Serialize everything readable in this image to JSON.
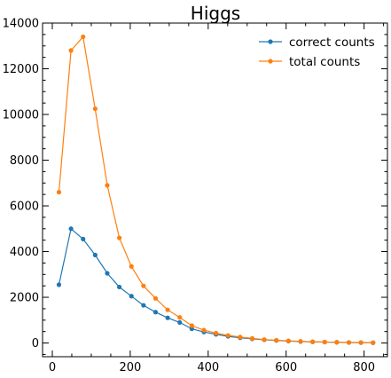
{
  "chart_data": {
    "type": "line",
    "title": "Higgs",
    "xlabel": "",
    "ylabel": "",
    "xlim": [
      -25,
      860
    ],
    "ylim": [
      -600,
      14000
    ],
    "xticks": [
      0,
      200,
      400,
      600,
      800
    ],
    "yticks": [
      0,
      2000,
      4000,
      6000,
      8000,
      10000,
      12000,
      14000
    ],
    "grid": false,
    "legend_position": "top-right",
    "x": [
      17,
      48,
      79,
      110,
      141,
      172,
      203,
      234,
      265,
      296,
      327,
      358,
      389,
      420,
      451,
      482,
      513,
      544,
      575,
      606,
      637,
      668,
      699,
      730,
      761,
      792,
      823
    ],
    "series": [
      {
        "name": "correct counts",
        "color": "#1f77b4",
        "values": [
          2550,
          5000,
          4550,
          3850,
          3050,
          2450,
          2050,
          1650,
          1350,
          1100,
          900,
          620,
          480,
          380,
          290,
          230,
          180,
          140,
          110,
          85,
          65,
          50,
          40,
          30,
          22,
          16,
          12
        ]
      },
      {
        "name": "total counts",
        "color": "#ff7f0e",
        "values": [
          6600,
          12800,
          13400,
          10250,
          6900,
          4600,
          3350,
          2500,
          1950,
          1450,
          1120,
          760,
          560,
          430,
          330,
          260,
          200,
          150,
          120,
          95,
          72,
          55,
          42,
          32,
          24,
          18,
          13
        ]
      }
    ]
  }
}
